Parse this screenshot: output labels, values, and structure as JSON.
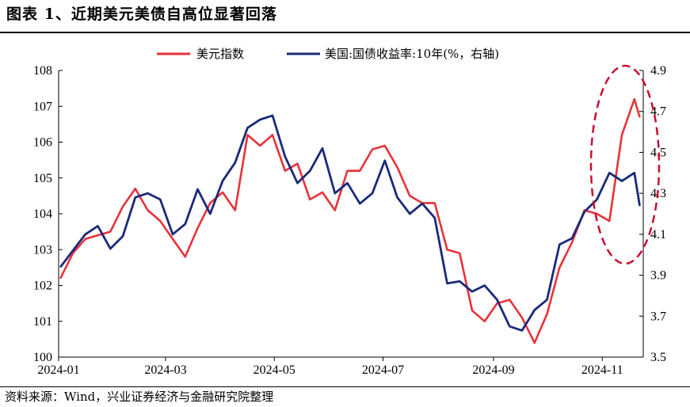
{
  "header": {
    "title": "图表 1、近期美元美债自高位显著回落"
  },
  "footer": {
    "source": "资料来源：Wind，兴业证券经济与金融研究院整理"
  },
  "colors": {
    "dxy": "#e8323a",
    "yield": "#1a2a7a",
    "highlight": "#c8102e"
  },
  "chart_data": {
    "type": "line",
    "xlabel": "",
    "ylabel": "",
    "x_tick_labels": [
      "2024-01",
      "2024-03",
      "2024-05",
      "2024-07",
      "2024-09",
      "2024-11"
    ],
    "ylim_left": [
      100,
      108
    ],
    "yticks_left": [
      100,
      101,
      102,
      103,
      104,
      105,
      106,
      107,
      108
    ],
    "ylim_right": [
      3.5,
      4.9
    ],
    "yticks_right": [
      3.5,
      3.7,
      3.9,
      4.1,
      4.3,
      4.5,
      4.7,
      4.9
    ],
    "legend_position": "top",
    "annotation": "dashed-ellipse-highlight",
    "x": [
      "2024-01-02",
      "2024-01-09",
      "2024-01-16",
      "2024-01-23",
      "2024-01-30",
      "2024-02-06",
      "2024-02-13",
      "2024-02-20",
      "2024-02-27",
      "2024-03-05",
      "2024-03-12",
      "2024-03-19",
      "2024-03-26",
      "2024-04-02",
      "2024-04-09",
      "2024-04-16",
      "2024-04-23",
      "2024-04-30",
      "2024-05-07",
      "2024-05-14",
      "2024-05-21",
      "2024-05-28",
      "2024-06-04",
      "2024-06-11",
      "2024-06-18",
      "2024-06-25",
      "2024-07-02",
      "2024-07-09",
      "2024-07-16",
      "2024-07-23",
      "2024-07-30",
      "2024-08-06",
      "2024-08-13",
      "2024-08-20",
      "2024-08-27",
      "2024-09-03",
      "2024-09-10",
      "2024-09-17",
      "2024-09-24",
      "2024-10-01",
      "2024-10-08",
      "2024-10-15",
      "2024-10-22",
      "2024-10-29",
      "2024-11-05",
      "2024-11-12",
      "2024-11-19",
      "2024-11-22"
    ],
    "series": [
      {
        "name": "美元指数",
        "axis": "left",
        "values": [
          102.2,
          102.9,
          103.3,
          103.4,
          103.5,
          104.2,
          104.7,
          104.1,
          103.8,
          103.3,
          102.8,
          103.6,
          104.3,
          104.6,
          104.1,
          106.2,
          105.9,
          106.2,
          105.2,
          105.4,
          104.4,
          104.6,
          104.1,
          105.2,
          105.2,
          105.8,
          105.9,
          105.3,
          104.5,
          104.3,
          104.3,
          103.0,
          102.9,
          101.3,
          101.0,
          101.5,
          101.6,
          101.1,
          100.4,
          101.2,
          102.5,
          103.2,
          104.1,
          104.0,
          103.8,
          106.2,
          107.2,
          106.7
        ]
      },
      {
        "name": "美国:国债收益率:10年(%，右轴)",
        "axis": "right",
        "values": [
          3.94,
          4.02,
          4.1,
          4.14,
          4.03,
          4.09,
          4.28,
          4.3,
          4.27,
          4.1,
          4.15,
          4.32,
          4.2,
          4.36,
          4.45,
          4.62,
          4.66,
          4.68,
          4.48,
          4.35,
          4.41,
          4.52,
          4.3,
          4.35,
          4.25,
          4.3,
          4.46,
          4.28,
          4.2,
          4.25,
          4.18,
          3.86,
          3.87,
          3.82,
          3.85,
          3.78,
          3.65,
          3.63,
          3.73,
          3.78,
          4.05,
          4.08,
          4.21,
          4.27,
          4.4,
          4.36,
          4.4,
          4.24
        ]
      }
    ]
  }
}
